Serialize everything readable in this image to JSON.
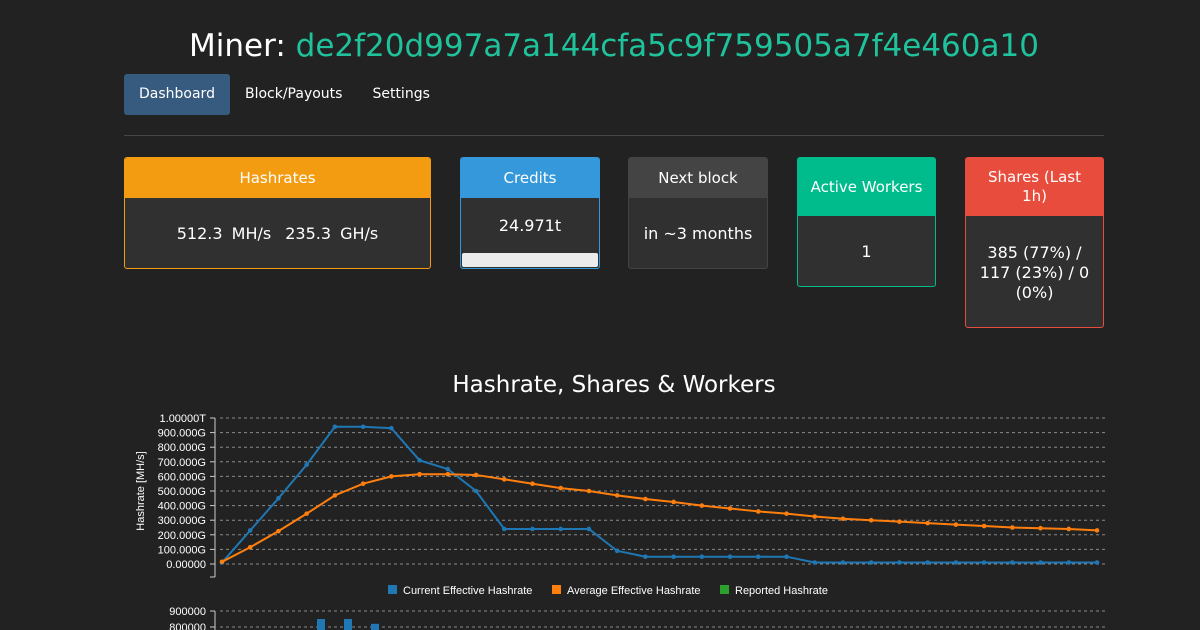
{
  "header": {
    "prefix": "Miner:",
    "address": "de2f20d997a7a144cfa5c9f759505a7f4e460a10"
  },
  "nav": {
    "tabs": [
      {
        "label": "Dashboard",
        "active": true
      },
      {
        "label": "Block/Payouts",
        "active": false
      },
      {
        "label": "Settings",
        "active": false
      }
    ]
  },
  "cards": {
    "hashrates": {
      "title": "Hashrates",
      "value1": "512.3 MH/s",
      "value2": "235.3 GH/s",
      "color": "#f39c12"
    },
    "credits": {
      "title": "Credits",
      "value": "24.971t",
      "progress": 0,
      "color": "#3498db"
    },
    "next_block": {
      "title": "Next block",
      "value": "in ~3 months",
      "color": "#444444"
    },
    "active_workers": {
      "title": "Active Workers",
      "value": "1",
      "color": "#00bc8c"
    },
    "shares": {
      "title": "Shares (Last 1h)",
      "value": "385 (77%) / 117 (23%) / 0 (0%)",
      "color": "#e74c3c"
    }
  },
  "chart_title": "Hashrate, Shares & Workers",
  "chart_data": [
    {
      "type": "line",
      "ylabel": "Hashrate [MH/s]",
      "ylim": [
        0,
        1000000000000
      ],
      "y_ticks": [
        "0.00000",
        "100.000G",
        "200.000G",
        "300.000G",
        "400.000G",
        "500.000G",
        "600.000G",
        "700.000G",
        "800.000G",
        "900.000G",
        "1.00000T"
      ],
      "grid": true,
      "legend": "bottom",
      "series": [
        {
          "name": "Current Effective Hashrate",
          "color": "#1f77b4",
          "values": [
            10,
            230,
            450,
            680,
            940,
            940,
            930,
            710,
            650,
            500,
            240,
            240,
            240,
            240,
            90,
            50,
            50,
            50,
            50,
            50,
            50,
            10,
            10,
            10,
            10,
            10,
            10,
            10,
            10,
            10,
            10,
            10
          ]
        },
        {
          "name": "Average Effective Hashrate",
          "color": "#ff7f0e",
          "values": [
            15,
            115,
            225,
            345,
            470,
            550,
            600,
            615,
            615,
            610,
            580,
            550,
            520,
            500,
            470,
            445,
            425,
            400,
            380,
            360,
            345,
            325,
            310,
            300,
            290,
            280,
            270,
            260,
            250,
            245,
            240,
            230
          ]
        },
        {
          "name": "Reported Hashrate",
          "color": "#2ca02c",
          "values": []
        }
      ]
    },
    {
      "type": "bar",
      "y_ticks": [
        "900000",
        "800000"
      ],
      "series": [
        {
          "color": "#1f77b4",
          "values": [
            850000,
            850000,
            820000
          ]
        }
      ]
    }
  ]
}
